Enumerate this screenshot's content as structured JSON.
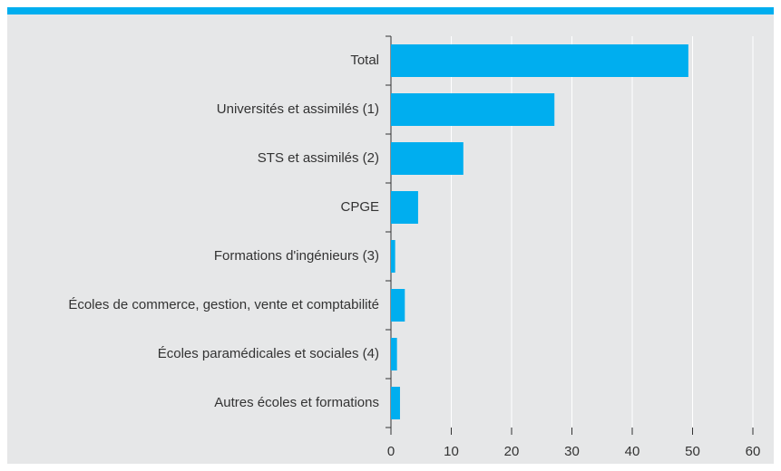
{
  "chart_data": {
    "type": "bar",
    "orientation": "horizontal",
    "categories": [
      "Total",
      "Universités et assimilés (1)",
      "STS et assimilés (2)",
      "CPGE",
      "Formations d'ingénieurs (3)",
      "Écoles de commerce, gestion, vente et comptabilité",
      "Écoles paramédicales et sociales (4)",
      "Autres écoles et formations"
    ],
    "values": [
      49.3,
      27.1,
      12.0,
      4.5,
      0.7,
      2.3,
      1.0,
      1.5
    ],
    "color": "#00aeef",
    "xlim": [
      0,
      60
    ],
    "xticks": [
      0,
      10,
      20,
      30,
      40,
      50,
      60
    ],
    "grid": true
  }
}
